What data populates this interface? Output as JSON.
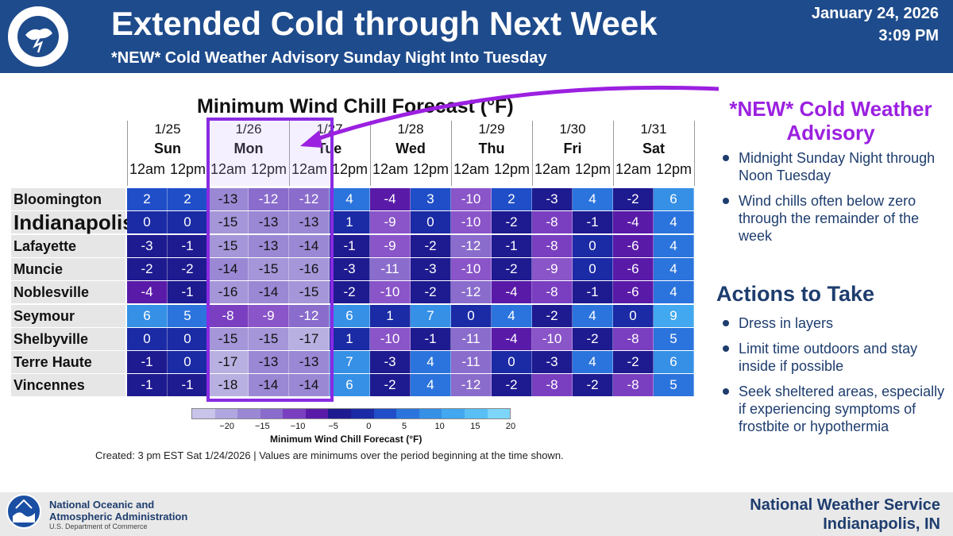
{
  "header": {
    "title": "Extended Cold through Next Week",
    "subtitle": "*NEW* Cold Weather Advisory Sunday Night Into Tuesday",
    "date": "January 24, 2026",
    "time": "3:09 PM",
    "logo_text": "NATIONAL WEATHER SERVICE"
  },
  "chart_data": {
    "type": "table",
    "title": "Minimum Wind Chill Forecast (°F)",
    "days": [
      {
        "date": "1/25",
        "weekday": "Sun"
      },
      {
        "date": "1/26",
        "weekday": "Mon"
      },
      {
        "date": "1/27",
        "weekday": "Tue"
      },
      {
        "date": "1/28",
        "weekday": "Wed"
      },
      {
        "date": "1/29",
        "weekday": "Thu"
      },
      {
        "date": "1/30",
        "weekday": "Fri"
      },
      {
        "date": "1/31",
        "weekday": "Sat"
      }
    ],
    "periods": [
      "12am",
      "12pm"
    ],
    "rows": [
      {
        "city": "Bloomington",
        "values": [
          2,
          2,
          -13,
          -12,
          -12,
          4,
          -4,
          3,
          -10,
          2,
          -3,
          4,
          -2,
          6
        ]
      },
      {
        "city": "Indianapolis",
        "values": [
          0,
          0,
          -15,
          -13,
          -13,
          1,
          -9,
          0,
          -10,
          -2,
          -8,
          -1,
          -4,
          4
        ]
      },
      {
        "city": "Lafayette",
        "values": [
          -3,
          -1,
          -15,
          -13,
          -14,
          -1,
          -9,
          -2,
          -12,
          -1,
          -8,
          0,
          -6,
          4
        ]
      },
      {
        "city": "Muncie",
        "values": [
          -2,
          -2,
          -14,
          -15,
          -16,
          -3,
          -11,
          -3,
          -10,
          -2,
          -9,
          0,
          -6,
          4
        ]
      },
      {
        "city": "Noblesville",
        "values": [
          -4,
          -1,
          -16,
          -14,
          -15,
          -2,
          -10,
          -2,
          -12,
          -4,
          -8,
          -1,
          -6,
          4
        ]
      },
      {
        "city": "Seymour",
        "values": [
          6,
          5,
          -8,
          -9,
          -12,
          6,
          1,
          7,
          0,
          4,
          -2,
          4,
          0,
          9
        ]
      },
      {
        "city": "Shelbyville",
        "values": [
          0,
          0,
          -15,
          -15,
          -17,
          1,
          -10,
          -1,
          -11,
          -4,
          -10,
          -2,
          -8,
          5
        ]
      },
      {
        "city": "Terre Haute",
        "values": [
          -1,
          0,
          -17,
          -13,
          -13,
          7,
          -3,
          4,
          -11,
          0,
          -3,
          4,
          -2,
          6
        ]
      },
      {
        "city": "Vincennes",
        "values": [
          -1,
          -1,
          -18,
          -14,
          -14,
          6,
          -2,
          4,
          -12,
          -2,
          -8,
          -2,
          -8,
          5
        ]
      }
    ],
    "colorbar": {
      "label": "Minimum Wind Chill Forecast (°F)",
      "ticks": [
        "−20",
        "−15",
        "−10",
        "−5",
        "0",
        "5",
        "10",
        "15",
        "20"
      ],
      "range": [
        -25,
        20
      ]
    },
    "highlight": "Mon 12am – Tue 12am"
  },
  "chart_footer": "Created: 3 pm EST Sat 1/24/2026  |  Values are minimums over the period beginning at the time shown.",
  "sidebar": {
    "advisory_title": "*NEW* Cold Weather Advisory",
    "advisory_items": [
      "Midnight Sunday Night through Noon Tuesday",
      "Wind chills often below zero through the remainder of the week"
    ],
    "actions_title": "Actions to Take",
    "action_items": [
      "Dress in layers",
      "Limit time outdoors and stay inside if possible",
      "Seek sheltered areas, especially if experiencing symptoms of frostbite or hypothermia"
    ]
  },
  "footer": {
    "noaa_line1": "National Oceanic and",
    "noaa_line2": "Atmospheric Administration",
    "noaa_sub": "U.S. Department of Commerce",
    "nws_line1": "National Weather Service",
    "nws_line2": "Indianapolis, IN"
  },
  "colors": {
    "header_blue": "#1e4b8c",
    "advisory_purple": "#9b20e0",
    "text_navy": "#1e3d6e"
  }
}
